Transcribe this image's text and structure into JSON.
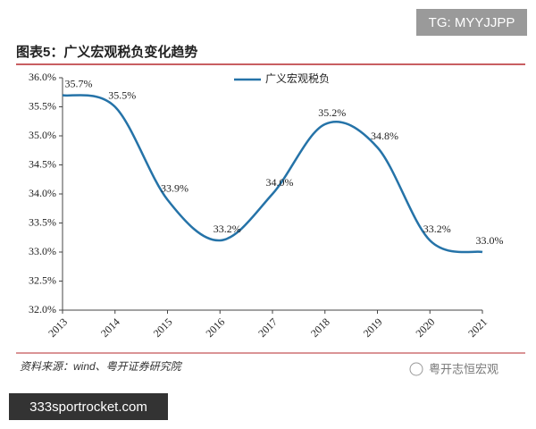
{
  "chart_data": {
    "type": "line",
    "title": "图表5：广义宏观税负变化趋势",
    "categories": [
      "2013",
      "2014",
      "2015",
      "2016",
      "2017",
      "2018",
      "2019",
      "2020",
      "2021"
    ],
    "series": [
      {
        "name": "广义宏观税负",
        "color": "#2573a8",
        "values": [
          35.7,
          35.5,
          33.9,
          33.2,
          34.0,
          35.2,
          34.8,
          33.2,
          33.0
        ],
        "value_labels": [
          "35.7%",
          "35.5%",
          "33.9%",
          "33.2%",
          "34.0%",
          "35.2%",
          "34.8%",
          "33.2%",
          "33.0%"
        ]
      }
    ],
    "ylim": [
      32,
      36
    ],
    "yticks": [
      {
        "value": 32,
        "label": "32.0%"
      },
      {
        "value": 32.5,
        "label": "32.5%"
      },
      {
        "value": 33,
        "label": "33.0%"
      },
      {
        "value": 33.5,
        "label": "33.5%"
      },
      {
        "value": 34,
        "label": "34.0%"
      },
      {
        "value": 34.5,
        "label": "34.5%"
      },
      {
        "value": 35,
        "label": "35.0%"
      },
      {
        "value": 35.5,
        "label": "35.5%"
      },
      {
        "value": 36,
        "label": "36.0%"
      }
    ],
    "legend": "top-center",
    "grid": false,
    "source": "资料来源：wind、粤开证券研究院"
  },
  "watermark": "TG: MYYJJPP",
  "brand": "粤开志恒宏观",
  "site": "333sportrocket.com"
}
